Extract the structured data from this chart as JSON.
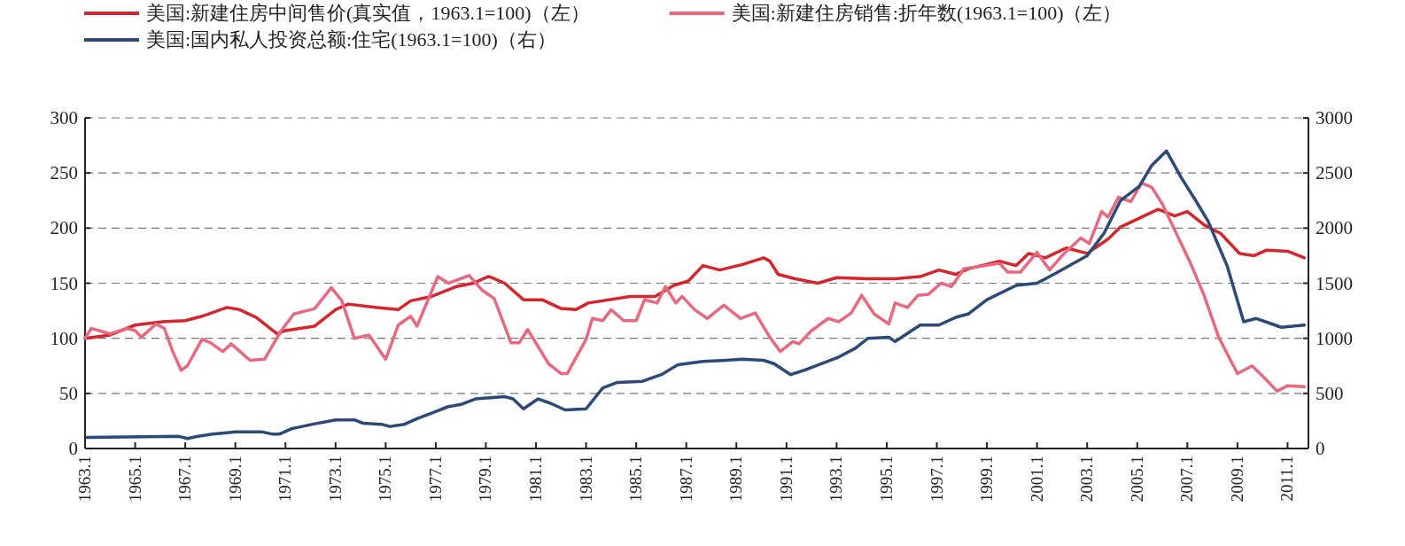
{
  "chart_data": {
    "type": "line",
    "legend": "top",
    "grid": "y",
    "xlim": [
      "1963-01",
      "2011-11"
    ],
    "xticks": [
      {
        "value": "1963-01",
        "label": "1963.1"
      },
      {
        "value": "1965-01",
        "label": "1965.1"
      },
      {
        "value": "1967-01",
        "label": "1967.1"
      },
      {
        "value": "1969-01",
        "label": "1969.1"
      },
      {
        "value": "1971-01",
        "label": "1971.1"
      },
      {
        "value": "1973-01",
        "label": "1973.1"
      },
      {
        "value": "1975-01",
        "label": "1975.1"
      },
      {
        "value": "1977-01",
        "label": "1977.1"
      },
      {
        "value": "1979-01",
        "label": "1979.1"
      },
      {
        "value": "1981-01",
        "label": "1981.1"
      },
      {
        "value": "1983-01",
        "label": "1983.1"
      },
      {
        "value": "1985-01",
        "label": "1985.1"
      },
      {
        "value": "1987-01",
        "label": "1987.1"
      },
      {
        "value": "1989-01",
        "label": "1989.1"
      },
      {
        "value": "1991-01",
        "label": "1991.1"
      },
      {
        "value": "1993-01",
        "label": "1993.1"
      },
      {
        "value": "1995-01",
        "label": "1995.1"
      },
      {
        "value": "1997-01",
        "label": "1997.1"
      },
      {
        "value": "1999-01",
        "label": "1999.1"
      },
      {
        "value": "2001-01",
        "label": "2001.1"
      },
      {
        "value": "2003-01",
        "label": "2003.1"
      },
      {
        "value": "2005-01",
        "label": "2005.1"
      },
      {
        "value": "2007-01",
        "label": "2007.1"
      },
      {
        "value": "2009-01",
        "label": "2009.1"
      },
      {
        "value": "2011-01",
        "label": "2011.1"
      }
    ],
    "ylim": [
      0,
      300
    ],
    "yticks": [
      0,
      50,
      100,
      150,
      200,
      250,
      300
    ],
    "y2lim": [
      0,
      3000
    ],
    "y2ticks": [
      0,
      500,
      1000,
      1500,
      2000,
      2500,
      3000
    ],
    "series": [
      {
        "name": "美国:新建住房中间售价(真实值，1963.1=100)（左）",
        "color": "#d7252e",
        "x": [
          "1963-01",
          "1964-01",
          "1965-01",
          "1966-02",
          "1967-01",
          "1967-09",
          "1968-09",
          "1969-03",
          "1969-11",
          "1970-09",
          "1971-01",
          "1972-03",
          "1973-01",
          "1973-07",
          "1974-08",
          "1975-07",
          "1976-01",
          "1976-11",
          "1977-11",
          "1978-07",
          "1979-02",
          "1979-04",
          "1979-10",
          "1980-07",
          "1981-04",
          "1982-01",
          "1982-08",
          "1983-02",
          "1984-10",
          "1985-10",
          "1986-07",
          "1987-02",
          "1987-09",
          "1988-05",
          "1989-04",
          "1990-02",
          "1990-05",
          "1990-09",
          "1991-05",
          "1992-04",
          "1993-01",
          "1994-04",
          "1995-05",
          "1996-05",
          "1997-02",
          "1997-10",
          "1998-04",
          "1999-07",
          "2000-03",
          "2000-09",
          "2001-05",
          "2002-03",
          "2003-01",
          "2003-11",
          "2004-05",
          "2005-02",
          "2005-11",
          "2006-07",
          "2007-01",
          "2007-09",
          "2008-05",
          "2009-02",
          "2009-09",
          "2010-03",
          "2011-01",
          "2011-09"
        ],
        "values": [
          100,
          103,
          112,
          115,
          116,
          120,
          128,
          126,
          119,
          104,
          107,
          111,
          126,
          131,
          128,
          126,
          134,
          138,
          147,
          150,
          156,
          155,
          150,
          135,
          135,
          127,
          126,
          132,
          138,
          138,
          148,
          152,
          166,
          162,
          167,
          173,
          170,
          158,
          154,
          150,
          155,
          154,
          154,
          156,
          162,
          158,
          163,
          170,
          166,
          177,
          173,
          182,
          177,
          190,
          201,
          209,
          217,
          211,
          215,
          203,
          195,
          177,
          175,
          180,
          179,
          173
        ]
      },
      {
        "name": "美国:新建住房销售:折年数(1963.1=100)（左）",
        "color": "#e8697f",
        "x": [
          "1963-01",
          "1963-04",
          "1964-01",
          "1964-09",
          "1965-01",
          "1965-04",
          "1965-11",
          "1966-03",
          "1966-07",
          "1966-11",
          "1967-02",
          "1967-09",
          "1968-01",
          "1968-07",
          "1968-11",
          "1969-08",
          "1970-03",
          "1970-11",
          "1971-05",
          "1972-01",
          "1972-03",
          "1972-11",
          "1973-04",
          "1973-10",
          "1974-05",
          "1975-01",
          "1975-07",
          "1976-01",
          "1976-04",
          "1977-02",
          "1977-07",
          "1978-05",
          "1978-11",
          "1979-05",
          "1980-01",
          "1980-05",
          "1980-09",
          "1981-07",
          "1982-01",
          "1982-04",
          "1983-01",
          "1983-04",
          "1983-09",
          "1984-01",
          "1984-07",
          "1985-01",
          "1985-05",
          "1985-11",
          "1986-03",
          "1986-08",
          "1986-11",
          "1987-05",
          "1987-11",
          "1988-07",
          "1989-03",
          "1989-10",
          "1990-05",
          "1990-10",
          "1991-04",
          "1991-07",
          "1992-01",
          "1992-09",
          "1993-02",
          "1993-08",
          "1994-01",
          "1994-07",
          "1995-02",
          "1995-05",
          "1995-11",
          "1996-04",
          "1996-09",
          "1997-03",
          "1997-08",
          "1998-02",
          "1999-07",
          "1999-11",
          "2000-05",
          "2001-01",
          "2001-07",
          "2002-02",
          "2002-10",
          "2003-02",
          "2003-08",
          "2003-11",
          "2004-04",
          "2004-10",
          "2005-03",
          "2005-08",
          "2006-01",
          "2006-07",
          "2007-03",
          "2007-09",
          "2008-04",
          "2009-01",
          "2009-08",
          "2010-02",
          "2010-08",
          "2011-01",
          "2011-09"
        ],
        "values": [
          100,
          109,
          104,
          109,
          107,
          101,
          113,
          109,
          88,
          71,
          75,
          99,
          96,
          88,
          95,
          80,
          81,
          107,
          122,
          126,
          127,
          146,
          134,
          100,
          103,
          81,
          112,
          120,
          111,
          156,
          150,
          157,
          144,
          136,
          96,
          96,
          108,
          77,
          68,
          68,
          99,
          118,
          116,
          126,
          116,
          116,
          135,
          132,
          147,
          132,
          138,
          126,
          118,
          130,
          118,
          123,
          101,
          88,
          97,
          95,
          107,
          118,
          115,
          123,
          139,
          122,
          113,
          132,
          128,
          139,
          140,
          150,
          147,
          163,
          168,
          160,
          160,
          178,
          162,
          177,
          191,
          186,
          215,
          210,
          228,
          224,
          241,
          237,
          222,
          198,
          166,
          139,
          101,
          68,
          75,
          64,
          52,
          57,
          56
        ]
      },
      {
        "name": "美国:国内私人投资总额:住宅(1963.1=100)（右）",
        "color": "#2c4a77",
        "axis": "y2",
        "x": [
          "1963-02",
          "1966-10",
          "1967-02",
          "1967-07",
          "1968-02",
          "1969-01",
          "1970-02",
          "1970-07",
          "1970-10",
          "1971-04",
          "1972-02",
          "1973-01",
          "1973-10",
          "1974-02",
          "1974-11",
          "1975-03",
          "1975-10",
          "1976-04",
          "1976-11",
          "1977-07",
          "1978-01",
          "1978-08",
          "1979-10",
          "1980-02",
          "1980-07",
          "1981-02",
          "1981-08",
          "1982-03",
          "1983-01",
          "1983-09",
          "1984-04",
          "1985-04",
          "1986-01",
          "1986-09",
          "1987-09",
          "1988-08",
          "1989-04",
          "1990-02",
          "1990-07",
          "1991-03",
          "1991-11",
          "1993-02",
          "1993-10",
          "1994-04",
          "1995-02",
          "1995-05",
          "1996-05",
          "1997-02",
          "1997-10",
          "1998-04",
          "1999-01",
          "2000-03",
          "2001-01",
          "2001-10",
          "2003-01",
          "2003-09",
          "2004-05",
          "2005-02",
          "2005-08",
          "2006-03",
          "2006-10",
          "2007-05",
          "2007-11",
          "2008-08",
          "2009-04",
          "2009-10",
          "2010-04",
          "2010-10",
          "2011-09"
        ],
        "values": [
          100,
          110,
          90,
          110,
          130,
          150,
          150,
          130,
          130,
          180,
          220,
          260,
          260,
          230,
          220,
          200,
          220,
          270,
          320,
          380,
          400,
          450,
          470,
          450,
          360,
          450,
          410,
          350,
          360,
          550,
          600,
          610,
          670,
          760,
          790,
          800,
          810,
          800,
          770,
          670,
          720,
          830,
          910,
          1000,
          1010,
          970,
          1120,
          1120,
          1190,
          1220,
          1350,
          1480,
          1500,
          1590,
          1750,
          1950,
          2250,
          2380,
          2570,
          2700,
          2460,
          2250,
          2060,
          1660,
          1150,
          1180,
          1140,
          1100,
          1120
        ]
      }
    ]
  }
}
